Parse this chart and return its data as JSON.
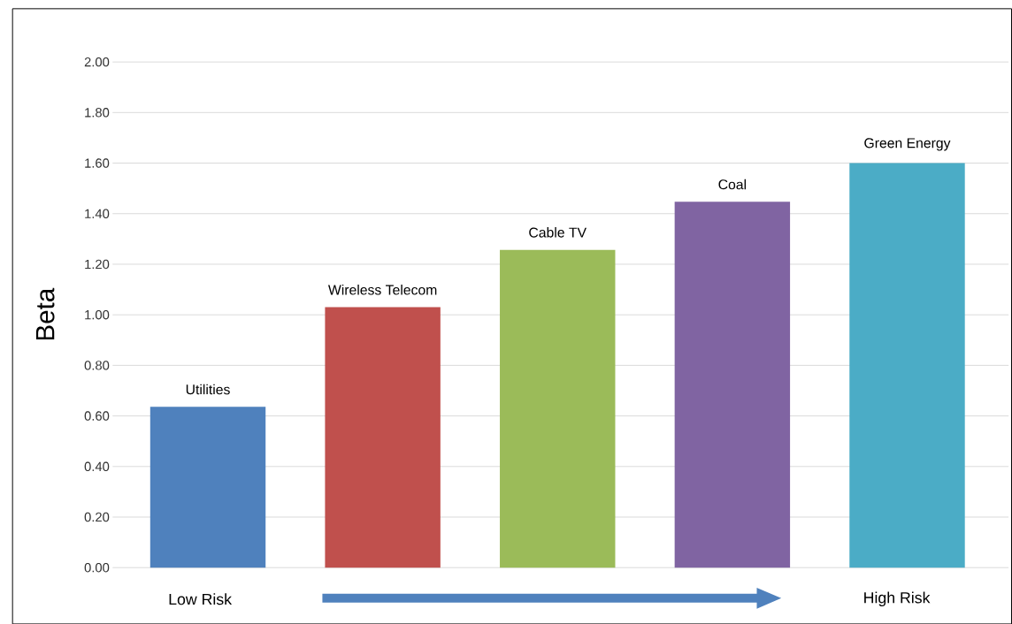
{
  "chart_data": {
    "type": "bar",
    "ylabel": "Beta",
    "categories": [
      "Utilities",
      "Wireless Telecom",
      "Cable TV",
      "Coal",
      "Green Energy"
    ],
    "values": [
      0.636,
      1.03,
      1.257,
      1.447,
      1.6
    ],
    "colors": [
      "#4f81bd",
      "#c0504d",
      "#9bbb59",
      "#8064a2",
      "#4bacc6"
    ],
    "ylim": [
      0,
      2
    ],
    "yticks": [
      {
        "value": 0,
        "label": "0.00"
      },
      {
        "value": 0.2,
        "label": "0.20"
      },
      {
        "value": 0.4,
        "label": "0.40"
      },
      {
        "value": 0.6,
        "label": "0.60"
      },
      {
        "value": 0.8,
        "label": "0.80"
      },
      {
        "value": 1.0,
        "label": "1.00"
      },
      {
        "value": 1.2,
        "label": "1.20"
      },
      {
        "value": 1.4,
        "label": "1.40"
      },
      {
        "value": 1.6,
        "label": "1.60"
      },
      {
        "value": 1.8,
        "label": "1.80"
      },
      {
        "value": 2.0,
        "label": "2.00"
      }
    ],
    "grid": "y",
    "annotations": [
      "Low Risk",
      "High Risk"
    ]
  }
}
